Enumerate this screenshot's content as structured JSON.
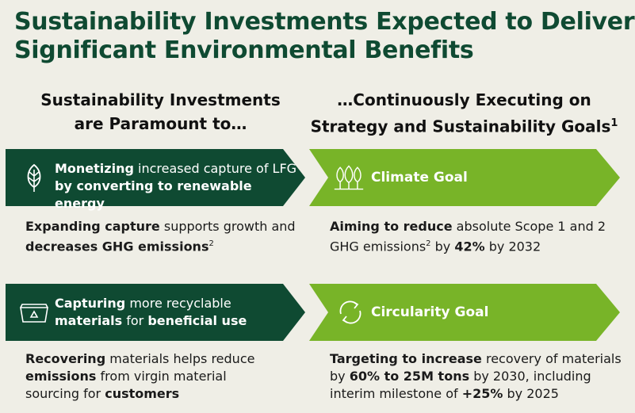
{
  "title_line1": "Sustainability Investments Expected to Deliver",
  "title_line2": "Significant Environmental Benefits",
  "left_heading_line1": "Sustainability Investments",
  "left_heading_line2": "are Paramount to…",
  "right_heading_line1": "…Continuously Executing on",
  "right_heading_line2": "Strategy and Sustainability Goals",
  "right_heading_sup": "1",
  "row1": {
    "banner_bold1": "Monetizing",
    "banner_rest1": " increased capture of LFG",
    "banner_bold2": "by converting to renewable energy",
    "icon": "leaf-icon",
    "desc_bold1": "Expanding capture",
    "desc_rest1": " supports growth and",
    "desc_bold2": "decreases GHG emissions",
    "desc_sup": "2",
    "goal_label": "Climate Goal",
    "goal_icon": "trees-icon",
    "goal_bold": "Aiming to reduce",
    "goal_rest1": " absolute Scope 1 and 2",
    "goal_line2a": "GHG emissions",
    "goal_sup": "2",
    "goal_line2b": " by ",
    "goal_pct": "42%",
    "goal_line2c": " by 2032"
  },
  "row2": {
    "banner_bold1": "Capturing",
    "banner_rest1": " more recyclable",
    "banner_bold2": "materials",
    "banner_mid2": " for ",
    "banner_bold3": "beneficial use",
    "icon": "recycling-bin-icon",
    "desc_bold1": "Recovering",
    "desc_rest1": " materials helps reduce",
    "desc_bold2": "emissions",
    "desc_rest2": " from virgin material",
    "desc_line3": "sourcing for ",
    "desc_bold3": "customers",
    "goal_label": "Circularity Goal",
    "goal_icon": "circular-arrows-icon",
    "goal_bold": "Targeting to increase",
    "goal_rest1": " recovery of materials",
    "goal_line2a": "by ",
    "goal_bold2": "60% to 25M tons",
    "goal_line2b": " by 2030, including",
    "goal_line3a": "interim milestone of ",
    "goal_bold3": "+25%",
    "goal_line3b": " by 2025"
  },
  "colors": {
    "dark_green": "#0f4a32",
    "bright_green": "#78b428",
    "background": "#efeee6"
  }
}
